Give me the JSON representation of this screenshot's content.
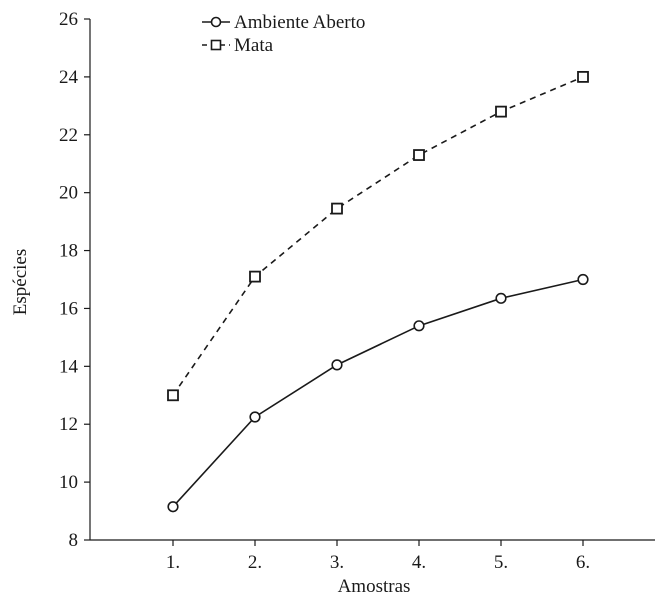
{
  "chart_data": {
    "type": "line",
    "title": "",
    "xlabel": "Amostras",
    "ylabel": "Espécies",
    "categories": [
      "1.",
      "2.",
      "3.",
      "4.",
      "5.",
      "6."
    ],
    "ylim": [
      8,
      26
    ],
    "yticks": [
      8,
      10,
      12,
      14,
      16,
      18,
      20,
      22,
      24,
      26
    ],
    "grid": false,
    "legend_position": "top-left",
    "series": [
      {
        "name": "Ambiente Aberto",
        "marker": "circle",
        "line_style": "solid",
        "color": "#1a1a1a",
        "values": [
          9.15,
          12.25,
          14.05,
          15.4,
          16.35,
          17.0
        ]
      },
      {
        "name": "Mata",
        "marker": "square",
        "line_style": "dashed",
        "color": "#1a1a1a",
        "values": [
          13.0,
          17.1,
          19.45,
          21.3,
          22.8,
          24.0
        ]
      }
    ]
  }
}
